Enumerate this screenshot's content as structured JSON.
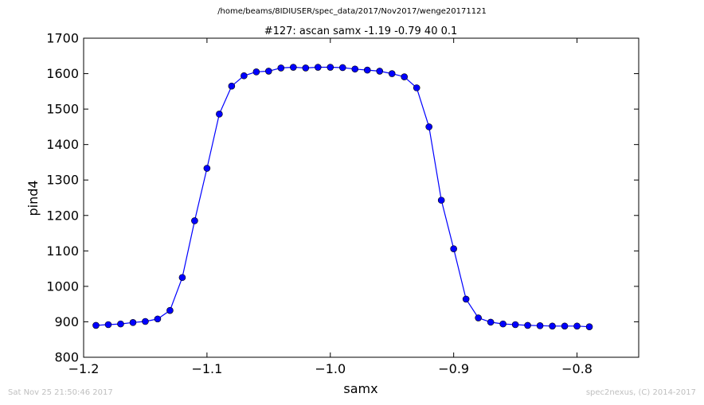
{
  "page": {
    "suptitle": "/home/beams/8IDIUSER/spec_data/2017/Nov2017/wenge20171121",
    "timestamp": "Sat Nov 25 21:50:46 2017",
    "credit": "spec2nexus, (C) 2014-2017"
  },
  "chart_data": {
    "type": "line",
    "title": "#127: ascan  samx -1.19 -0.79  40 0.1",
    "xlabel": "samx",
    "ylabel": "pind4",
    "xlim": [
      -1.2,
      -0.75
    ],
    "ylim": [
      800,
      1700
    ],
    "xticks": [
      -1.2,
      -1.1,
      -1.0,
      -0.9,
      -0.8
    ],
    "xtick_labels": [
      "−1.2",
      "−1.1",
      "−1.0",
      "−0.9",
      "−0.8"
    ],
    "yticks": [
      800,
      900,
      1000,
      1100,
      1200,
      1300,
      1400,
      1500,
      1600,
      1700
    ],
    "ytick_labels": [
      "800",
      "900",
      "1000",
      "1100",
      "1200",
      "1300",
      "1400",
      "1500",
      "1600",
      "1700"
    ],
    "grid": false,
    "marker": "circle",
    "line_color": "#0000ff",
    "series": [
      {
        "x": [
          -1.19,
          -1.18,
          -1.17,
          -1.16,
          -1.15,
          -1.14,
          -1.13,
          -1.12,
          -1.11,
          -1.1,
          -1.09,
          -1.08,
          -1.07,
          -1.06,
          -1.05,
          -1.04,
          -1.03,
          -1.02,
          -1.01,
          -1.0,
          -0.99,
          -0.98,
          -0.97,
          -0.96,
          -0.95,
          -0.94,
          -0.93,
          -0.92,
          -0.91,
          -0.9,
          -0.89,
          -0.88,
          -0.87,
          -0.86,
          -0.85,
          -0.84,
          -0.83,
          -0.82,
          -0.81,
          -0.8,
          -0.79
        ],
        "y": [
          890,
          892,
          894,
          898,
          901,
          908,
          932,
          1025,
          1185,
          1333,
          1486,
          1565,
          1594,
          1605,
          1607,
          1616,
          1618,
          1616,
          1618,
          1618,
          1617,
          1613,
          1610,
          1607,
          1600,
          1591,
          1560,
          1450,
          1243,
          1106,
          964,
          911,
          899,
          894,
          892,
          890,
          889,
          888,
          888,
          888,
          886
        ]
      }
    ]
  }
}
